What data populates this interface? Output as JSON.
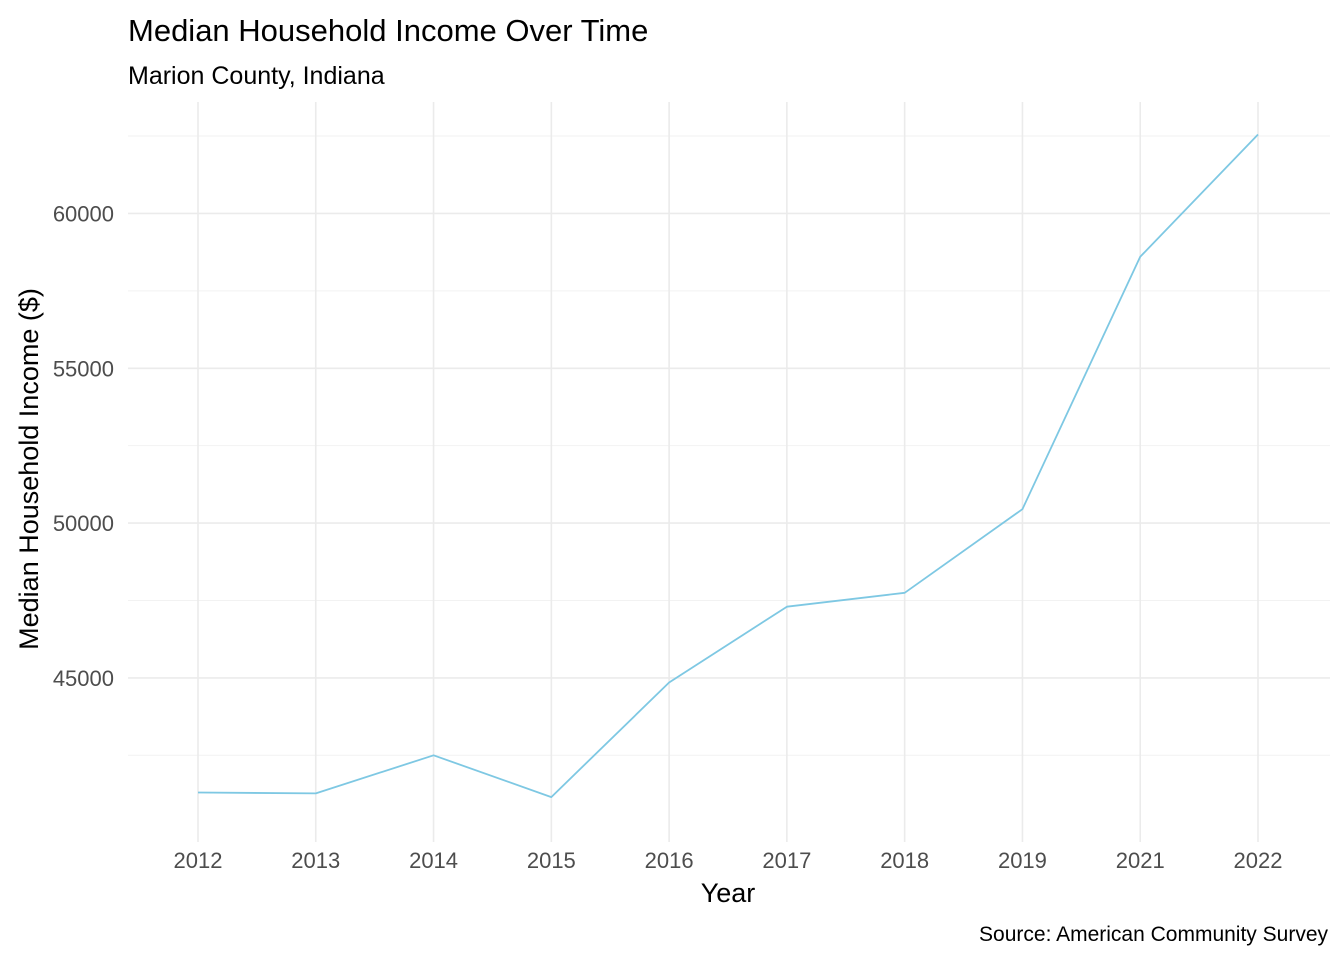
{
  "chart_data": {
    "type": "line",
    "title": "Median Household Income Over Time",
    "subtitle": "Marion County, Indiana",
    "xlabel": "Year",
    "ylabel": "Median Household Income ($)",
    "caption": "Source: American Community Survey",
    "categories": [
      "2012",
      "2013",
      "2014",
      "2015",
      "2016",
      "2017",
      "2018",
      "2019",
      "2021",
      "2022"
    ],
    "values": [
      41300,
      41270,
      42500,
      41150,
      44850,
      47300,
      47750,
      50450,
      58600,
      62550
    ],
    "yticks": [
      45000,
      50000,
      55000,
      60000
    ],
    "ylim": [
      39700,
      63600
    ],
    "grid": true,
    "legend": "none",
    "line_color": "#7ec8e3"
  }
}
